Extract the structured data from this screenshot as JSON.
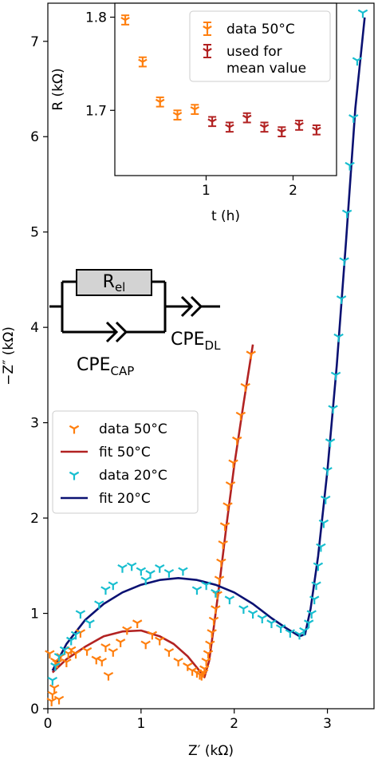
{
  "chart_data": [
    {
      "type": "scatter",
      "xlabel": "Z′ (kΩ)",
      "ylabel": "−Z″ (kΩ)",
      "xlim": [
        0,
        3.5
      ],
      "ylim": [
        0,
        7.4
      ],
      "xticks": [
        "0",
        "1",
        "2",
        "3"
      ],
      "yticks": [
        "0",
        "1",
        "2",
        "3",
        "4",
        "5",
        "6",
        "7"
      ],
      "legend": {
        "position": "middle-left",
        "entries": [
          "data 50°C",
          "fit 50°C",
          "data 20°C",
          "fit 20°C"
        ]
      },
      "colors": {
        "data_50": "#ff7f0e",
        "fit_50": "#b22222",
        "data_20": "#17becf",
        "fit_20": "#0a1172"
      },
      "series": [
        {
          "name": "data 50°C",
          "kind": "markers",
          "marker": "tri-y",
          "points": [
            [
              0.02,
              0.58
            ],
            [
              0.05,
              0.15
            ],
            [
              0.07,
              0.22
            ],
            [
              0.04,
              0.08
            ],
            [
              0.08,
              0.5
            ],
            [
              0.1,
              0.48
            ],
            [
              0.12,
              0.1
            ],
            [
              0.14,
              0.55
            ],
            [
              0.2,
              0.49
            ],
            [
              0.22,
              0.58
            ],
            [
              0.25,
              0.62
            ],
            [
              0.3,
              0.58
            ],
            [
              0.35,
              0.8
            ],
            [
              0.42,
              0.61
            ],
            [
              0.52,
              0.52
            ],
            [
              0.58,
              0.5
            ],
            [
              0.62,
              0.65
            ],
            [
              0.65,
              0.35
            ],
            [
              0.7,
              0.6
            ],
            [
              0.78,
              0.7
            ],
            [
              0.85,
              0.83
            ],
            [
              0.96,
              0.9
            ],
            [
              1.05,
              0.68
            ],
            [
              1.12,
              0.78
            ],
            [
              1.2,
              0.72
            ],
            [
              1.3,
              0.6
            ],
            [
              1.4,
              0.5
            ],
            [
              1.5,
              0.45
            ],
            [
              1.55,
              0.4
            ],
            [
              1.6,
              0.38
            ],
            [
              1.63,
              0.36
            ],
            [
              1.65,
              0.35
            ],
            [
              1.67,
              0.38
            ],
            [
              1.68,
              0.42
            ],
            [
              1.7,
              0.5
            ],
            [
              1.72,
              0.58
            ],
            [
              1.74,
              0.68
            ],
            [
              1.76,
              0.8
            ],
            [
              1.78,
              0.93
            ],
            [
              1.8,
              1.05
            ],
            [
              1.82,
              1.2
            ],
            [
              1.84,
              1.36
            ],
            [
              1.86,
              1.54
            ],
            [
              1.88,
              1.73
            ],
            [
              1.9,
              1.92
            ],
            [
              1.93,
              2.13
            ],
            [
              1.96,
              2.35
            ],
            [
              1.99,
              2.58
            ],
            [
              2.03,
              2.82
            ],
            [
              2.07,
              3.08
            ],
            [
              2.12,
              3.38
            ],
            [
              2.18,
              3.72
            ]
          ]
        },
        {
          "name": "fit 50°C",
          "kind": "line",
          "points": [
            [
              0.05,
              0.38
            ],
            [
              0.2,
              0.52
            ],
            [
              0.4,
              0.65
            ],
            [
              0.6,
              0.76
            ],
            [
              0.8,
              0.81
            ],
            [
              1.0,
              0.82
            ],
            [
              1.2,
              0.76
            ],
            [
              1.35,
              0.68
            ],
            [
              1.5,
              0.55
            ],
            [
              1.6,
              0.43
            ],
            [
              1.68,
              0.33
            ],
            [
              1.73,
              0.5
            ],
            [
              1.78,
              0.85
            ],
            [
              1.84,
              1.3
            ],
            [
              1.92,
              1.95
            ],
            [
              2.0,
              2.55
            ],
            [
              2.1,
              3.2
            ],
            [
              2.2,
              3.82
            ]
          ]
        },
        {
          "name": "data 20°C",
          "kind": "markers",
          "marker": "tri-y",
          "points": [
            [
              0.05,
              0.3
            ],
            [
              0.08,
              0.45
            ],
            [
              0.12,
              0.55
            ],
            [
              0.18,
              0.62
            ],
            [
              0.25,
              0.72
            ],
            [
              0.3,
              0.78
            ],
            [
              0.35,
              1.0
            ],
            [
              0.45,
              0.9
            ],
            [
              0.55,
              1.1
            ],
            [
              0.62,
              1.25
            ],
            [
              0.7,
              1.3
            ],
            [
              0.8,
              1.48
            ],
            [
              0.9,
              1.5
            ],
            [
              1.0,
              1.45
            ],
            [
              1.05,
              1.35
            ],
            [
              1.1,
              1.42
            ],
            [
              1.2,
              1.48
            ],
            [
              1.3,
              1.43
            ],
            [
              1.45,
              1.45
            ],
            [
              1.6,
              1.25
            ],
            [
              1.7,
              1.3
            ],
            [
              1.8,
              1.22
            ],
            [
              1.95,
              1.15
            ],
            [
              2.1,
              1.05
            ],
            [
              2.2,
              1.0
            ],
            [
              2.3,
              0.95
            ],
            [
              2.4,
              0.9
            ],
            [
              2.5,
              0.85
            ],
            [
              2.6,
              0.8
            ],
            [
              2.7,
              0.78
            ],
            [
              2.75,
              0.82
            ],
            [
              2.8,
              0.9
            ],
            [
              2.83,
              1.0
            ],
            [
              2.86,
              1.15
            ],
            [
              2.88,
              1.3
            ],
            [
              2.9,
              1.5
            ],
            [
              2.93,
              1.7
            ],
            [
              2.96,
              1.95
            ],
            [
              2.98,
              2.2
            ],
            [
              3.0,
              2.5
            ],
            [
              3.03,
              2.8
            ],
            [
              3.06,
              3.15
            ],
            [
              3.09,
              3.5
            ],
            [
              3.12,
              3.9
            ],
            [
              3.15,
              4.3
            ],
            [
              3.18,
              4.7
            ],
            [
              3.21,
              5.2
            ],
            [
              3.24,
              5.7
            ],
            [
              3.28,
              6.2
            ],
            [
              3.32,
              6.8
            ],
            [
              3.38,
              7.3
            ]
          ]
        },
        {
          "name": "fit 20°C",
          "kind": "line",
          "points": [
            [
              0.05,
              0.4
            ],
            [
              0.2,
              0.68
            ],
            [
              0.4,
              0.93
            ],
            [
              0.6,
              1.1
            ],
            [
              0.8,
              1.22
            ],
            [
              1.0,
              1.3
            ],
            [
              1.2,
              1.35
            ],
            [
              1.4,
              1.37
            ],
            [
              1.6,
              1.35
            ],
            [
              1.8,
              1.3
            ],
            [
              2.0,
              1.22
            ],
            [
              2.2,
              1.1
            ],
            [
              2.4,
              0.95
            ],
            [
              2.55,
              0.85
            ],
            [
              2.7,
              0.76
            ],
            [
              2.76,
              0.78
            ],
            [
              2.82,
              1.05
            ],
            [
              2.9,
              1.6
            ],
            [
              3.0,
              2.5
            ],
            [
              3.1,
              3.6
            ],
            [
              3.2,
              4.9
            ],
            [
              3.3,
              6.3
            ],
            [
              3.4,
              7.25
            ]
          ]
        }
      ]
    },
    {
      "type": "scatter",
      "xlabel": "t (h)",
      "ylabel": "R (kΩ)",
      "xlim": [
        -0.05,
        2.5
      ],
      "ylim": [
        1.63,
        1.815
      ],
      "xticks": [
        "1",
        "2"
      ],
      "yticks": [
        "1.7",
        "1.8"
      ],
      "legend": {
        "position": "top-right",
        "entries": [
          "data 50°C",
          "used for mean value"
        ],
        "entry_lines": [
          [
            "data 50°C"
          ],
          [
            "used for",
            "mean value"
          ]
        ]
      },
      "colors": {
        "data": "#ff7f0e",
        "mean": "#b22222"
      },
      "series": [
        {
          "name": "data 50°C",
          "kind": "errorbar",
          "marker": "tri-down",
          "points": [
            [
              0.07,
              1.797
            ],
            [
              0.27,
              1.752
            ],
            [
              0.47,
              1.709
            ],
            [
              0.67,
              1.695
            ],
            [
              0.87,
              1.701
            ]
          ]
        },
        {
          "name": "used for mean value",
          "kind": "errorbar",
          "marker": "tri-down",
          "points": [
            [
              1.07,
              1.688
            ],
            [
              1.27,
              1.682
            ],
            [
              1.47,
              1.692
            ],
            [
              1.67,
              1.682
            ],
            [
              1.87,
              1.677
            ],
            [
              2.07,
              1.684
            ],
            [
              2.27,
              1.679
            ]
          ]
        }
      ],
      "error": 0.005
    }
  ],
  "circuit": {
    "resistor_label": "R",
    "resistor_sub": "el",
    "cpe_cap_label": "CPE",
    "cpe_cap_sub": "CAP",
    "cpe_dl_label": "CPE",
    "cpe_dl_sub": "DL"
  }
}
